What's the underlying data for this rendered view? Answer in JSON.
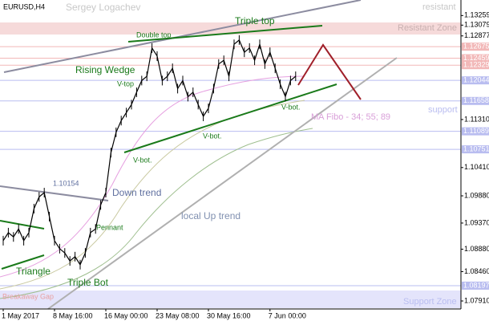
{
  "chart_data": {
    "type": "line",
    "title": "EURUSD,H4",
    "subtitle": "Sergey Logachev",
    "categories": [
      "1 May 2017",
      null,
      null,
      null,
      null,
      null,
      null,
      null,
      null,
      null,
      "8 May 16:00",
      null,
      null,
      null,
      null,
      null,
      null,
      null,
      null,
      null,
      "16 May 00:00",
      null,
      null,
      null,
      null,
      null,
      null,
      null,
      null,
      null,
      "23 May 08:00",
      null,
      null,
      null,
      null,
      null,
      null,
      null,
      null,
      null,
      "30 May 16:00",
      null,
      null,
      null,
      null,
      null,
      null,
      null,
      null,
      null,
      null,
      null,
      "7 Jun 00:00",
      null,
      null,
      null,
      null,
      null
    ],
    "series": [
      {
        "color": "#000000",
        "values": [
          1.0904,
          1.0919,
          1.0911,
          1.0926,
          1.0904,
          1.0919,
          1.0964,
          1.0986,
          1.0994,
          1.0949,
          1.0904,
          1.0889,
          1.0881,
          1.0866,
          1.0874,
          1.0859,
          1.0881,
          1.0919,
          1.0926,
          1.0971,
          1.0994,
          1.1069,
          1.1107,
          1.1129,
          1.1144,
          1.1159,
          1.1182,
          1.1204,
          1.1212,
          1.1265,
          1.125,
          1.1204,
          1.1212,
          1.1227,
          1.1189,
          1.1204,
          1.1174,
          1.1182,
          1.1159,
          1.1137,
          1.1152,
          1.1189,
          1.1235,
          1.1242,
          1.1212,
          1.1272,
          1.128,
          1.1257,
          1.1265,
          1.1242,
          1.1272,
          1.1235,
          1.1257,
          1.1227,
          1.1197,
          1.1174,
          1.1204,
          1.1212
        ]
      }
    ],
    "ylim": [
      1.0776,
      1.1355
    ],
    "yticks": [
      1.13259,
      1.13079,
      1.12877,
      {
        "value": 1.1131,
        "label": "1.11310"
      },
      {
        "value": 1.1041,
        "label": "1.10410"
      },
      {
        "value": 1.0988,
        "label": "1.09880"
      },
      {
        "value": 1.0937,
        "label": "1.09370"
      },
      {
        "value": 1.0888,
        "label": "1.08880"
      },
      {
        "value": 1.0846,
        "label": "1.08460"
      },
      {
        "value": 1.0791,
        "label": "1.07910"
      }
    ],
    "levels": [
      {
        "value": 1.12675,
        "color": "#f2b8b8"
      },
      {
        "value": 1.12459,
        "color": "#f2b8b8"
      },
      {
        "value": 1.12329,
        "color": "#f2b8b8"
      },
      {
        "value": 1.12044,
        "color": "#b9bdf0"
      },
      {
        "value": 1.11658,
        "color": "#b9bdf0"
      },
      {
        "value": 1.11089,
        "color": "#b9bdf0"
      },
      {
        "value": 1.10751,
        "color": "#b9bdf0"
      },
      {
        "value": 1.08197,
        "color": "#b9bdf0"
      }
    ],
    "annotations": [
      "Triple top",
      "Double top",
      "Rising Wedge",
      "V-top",
      "V-bot.",
      "V-bot.",
      "V-bot.",
      "Down trend",
      "1.10154",
      "Pennant",
      "Triangle",
      "Triple Bot",
      "local Up trend",
      "MA Fibo - 34; 55; 89",
      "resistant",
      "Resistant Zone",
      "support",
      "Support Zone",
      "Breakaway Gap"
    ]
  }
}
